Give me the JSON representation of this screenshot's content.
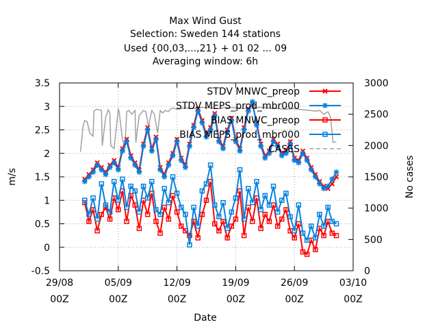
{
  "chart_data": {
    "type": "line",
    "title_lines": [
      "Max Wind Gust",
      "Selection: Sweden    144 stations",
      "Used {00,03,...,21} + 01 02 ... 09",
      "Averaging window:  6h"
    ],
    "xlabel": "Date",
    "ylabel": "m/s",
    "y2label": "No cases",
    "x_ticks": [
      {
        "x": 0,
        "line1": "29/08",
        "line2": "00Z"
      },
      {
        "x": 7,
        "line1": "05/09",
        "line2": "00Z"
      },
      {
        "x": 14,
        "line1": "12/09",
        "line2": "00Z"
      },
      {
        "x": 21,
        "line1": "19/09",
        "line2": "00Z"
      },
      {
        "x": 28,
        "line1": "26/09",
        "line2": "00Z"
      },
      {
        "x": 35,
        "line1": "03/10",
        "line2": "00Z"
      }
    ],
    "xlim": [
      0,
      35
    ],
    "ylim": [
      -0.5,
      3.5
    ],
    "y_ticks": [
      "-0.5",
      "0",
      "0.5",
      "1",
      "1.5",
      "2",
      "2.5",
      "3",
      "3.5"
    ],
    "y2lim": [
      0,
      3000
    ],
    "y2_ticks": [
      "0",
      "500",
      "1000",
      "1500",
      "2000",
      "2500",
      "3000"
    ],
    "grid": true,
    "legend_position": "top-right",
    "series": [
      {
        "name": "STDV MNWC_preop",
        "color": "#ff0000",
        "marker": "x",
        "axis": "y",
        "x": [
          3.0,
          3.5,
          4.0,
          4.5,
          5.0,
          5.5,
          6.0,
          6.5,
          7.0,
          7.5,
          8.0,
          8.5,
          9.0,
          9.5,
          10.0,
          10.5,
          11.0,
          11.5,
          12.0,
          12.5,
          13.0,
          13.5,
          14.0,
          14.5,
          15.0,
          15.5,
          16.0,
          16.5,
          17.0,
          17.5,
          18.0,
          18.5,
          19.0,
          19.5,
          20.0,
          20.5,
          21.0,
          21.5,
          22.0,
          22.5,
          23.0,
          23.5,
          24.0,
          24.5,
          25.0,
          25.5,
          26.0,
          26.5,
          27.0,
          27.5,
          28.0,
          28.5,
          29.0,
          29.5,
          30.0,
          30.5,
          31.0,
          31.5,
          32.0,
          32.5,
          33.0
        ],
        "values": [
          1.45,
          1.55,
          1.65,
          1.8,
          1.7,
          1.6,
          1.75,
          1.85,
          1.7,
          2.1,
          2.3,
          1.95,
          1.8,
          1.65,
          2.2,
          2.55,
          2.1,
          2.35,
          1.7,
          1.55,
          1.8,
          2.0,
          2.3,
          1.9,
          1.75,
          2.2,
          2.6,
          2.95,
          2.7,
          2.4,
          2.55,
          2.85,
          2.3,
          2.15,
          2.5,
          2.75,
          2.3,
          2.1,
          2.55,
          2.95,
          3.05,
          2.65,
          2.2,
          1.95,
          2.05,
          2.3,
          2.2,
          2.0,
          2.05,
          2.25,
          1.9,
          1.85,
          2.05,
          1.9,
          1.7,
          1.55,
          1.4,
          1.3,
          1.25,
          1.35,
          1.5
        ]
      },
      {
        "name": "STDV MEPS_prod_mbr000",
        "color": "#0080e0",
        "marker": "*",
        "axis": "y",
        "x": [
          3.0,
          3.5,
          4.0,
          4.5,
          5.0,
          5.5,
          6.0,
          6.5,
          7.0,
          7.5,
          8.0,
          8.5,
          9.0,
          9.5,
          10.0,
          10.5,
          11.0,
          11.5,
          12.0,
          12.5,
          13.0,
          13.5,
          14.0,
          14.5,
          15.0,
          15.5,
          16.0,
          16.5,
          17.0,
          17.5,
          18.0,
          18.5,
          19.0,
          19.5,
          20.0,
          20.5,
          21.0,
          21.5,
          22.0,
          22.5,
          23.0,
          23.5,
          24.0,
          24.5,
          25.0,
          25.5,
          26.0,
          26.5,
          27.0,
          27.5,
          28.0,
          28.5,
          29.0,
          29.5,
          30.0,
          30.5,
          31.0,
          31.5,
          32.0,
          32.5,
          33.0
        ],
        "values": [
          1.4,
          1.5,
          1.6,
          1.75,
          1.65,
          1.55,
          1.7,
          1.8,
          1.65,
          2.05,
          2.25,
          1.9,
          1.75,
          1.6,
          2.15,
          2.5,
          2.05,
          2.3,
          1.65,
          1.5,
          1.75,
          1.95,
          2.25,
          1.85,
          1.7,
          2.15,
          2.55,
          2.9,
          2.65,
          2.35,
          2.5,
          2.8,
          2.25,
          2.1,
          2.45,
          2.7,
          2.25,
          2.05,
          2.5,
          2.9,
          3.1,
          2.6,
          2.15,
          1.9,
          2.0,
          2.25,
          2.15,
          1.95,
          2.0,
          2.2,
          1.85,
          1.8,
          2.0,
          1.85,
          1.65,
          1.5,
          1.35,
          1.25,
          1.3,
          1.45,
          1.6
        ]
      },
      {
        "name": "BIAS MNWC_preop",
        "color": "#ff0000",
        "marker": "square",
        "axis": "y",
        "x": [
          3.0,
          3.5,
          4.0,
          4.5,
          5.0,
          5.5,
          6.0,
          6.5,
          7.0,
          7.5,
          8.0,
          8.5,
          9.0,
          9.5,
          10.0,
          10.5,
          11.0,
          11.5,
          12.0,
          12.5,
          13.0,
          13.5,
          14.0,
          14.5,
          15.0,
          15.5,
          16.0,
          16.5,
          17.0,
          17.5,
          18.0,
          18.5,
          19.0,
          19.5,
          20.0,
          20.5,
          21.0,
          21.5,
          22.0,
          22.5,
          23.0,
          23.5,
          24.0,
          24.5,
          25.0,
          25.5,
          26.0,
          26.5,
          27.0,
          27.5,
          28.0,
          28.5,
          29.0,
          29.5,
          30.0,
          30.5,
          31.0,
          31.5,
          32.0,
          32.5,
          33.0
        ],
        "values": [
          0.95,
          0.55,
          0.8,
          0.35,
          0.7,
          0.85,
          0.6,
          1.05,
          0.8,
          1.2,
          0.55,
          1.1,
          0.9,
          0.4,
          1.0,
          0.7,
          1.15,
          0.55,
          0.3,
          0.85,
          0.6,
          1.1,
          0.75,
          0.45,
          0.35,
          0.25,
          0.55,
          0.2,
          0.7,
          1.0,
          1.4,
          0.5,
          0.35,
          0.55,
          0.2,
          0.45,
          0.6,
          1.2,
          0.25,
          0.85,
          0.55,
          1.05,
          0.4,
          0.7,
          0.55,
          0.9,
          0.45,
          0.6,
          0.8,
          0.35,
          0.2,
          0.5,
          -0.1,
          -0.15,
          0.15,
          -0.05,
          0.4,
          0.25,
          0.55,
          0.3,
          0.25
        ]
      },
      {
        "name": "BIAS MEPS_prod_mbr000",
        "color": "#0080e0",
        "marker": "square",
        "axis": "y",
        "x": [
          3.0,
          3.5,
          4.0,
          4.5,
          5.0,
          5.5,
          6.0,
          6.5,
          7.0,
          7.5,
          8.0,
          8.5,
          9.0,
          9.5,
          10.0,
          10.5,
          11.0,
          11.5,
          12.0,
          12.5,
          13.0,
          13.5,
          14.0,
          14.5,
          15.0,
          15.5,
          16.0,
          16.5,
          17.0,
          17.5,
          18.0,
          18.5,
          19.0,
          19.5,
          20.0,
          20.5,
          21.0,
          21.5,
          22.0,
          22.5,
          23.0,
          23.5,
          24.0,
          24.5,
          25.0,
          25.5,
          26.0,
          26.5,
          27.0,
          27.5,
          28.0,
          28.5,
          29.0,
          29.5,
          30.0,
          30.5,
          31.0,
          31.5,
          32.0,
          32.5,
          33.0
        ],
        "values": [
          1.0,
          0.7,
          1.05,
          0.6,
          1.35,
          0.9,
          0.75,
          1.4,
          1.0,
          1.45,
          0.85,
          1.3,
          1.2,
          0.75,
          1.3,
          1.05,
          1.4,
          0.8,
          0.7,
          1.25,
          0.95,
          1.5,
          1.15,
          0.85,
          0.7,
          0.05,
          0.85,
          0.45,
          1.2,
          1.35,
          1.75,
          0.9,
          0.65,
          0.95,
          0.4,
          0.75,
          1.05,
          1.65,
          0.6,
          1.25,
          0.95,
          1.4,
          0.8,
          1.1,
          0.9,
          1.3,
          0.75,
          1.0,
          1.15,
          0.65,
          0.35,
          0.9,
          0.3,
          0.15,
          0.45,
          0.2,
          0.7,
          0.45,
          0.85,
          0.55,
          0.5
        ]
      },
      {
        "name": "CASES",
        "color": "#a0a0a0",
        "marker": "none",
        "axis": "y2",
        "x": [
          2.5,
          2.8,
          3.0,
          3.3,
          3.6,
          4.0,
          4.1,
          4.4,
          5.0,
          5.1,
          5.5,
          5.8,
          6.0,
          6.1,
          6.5,
          7.0,
          7.1,
          7.5,
          7.8,
          8.0,
          8.3,
          8.6,
          9.0,
          9.1,
          9.5,
          10.0,
          10.3,
          10.6,
          11.0,
          11.3,
          11.7,
          12.0,
          12.3,
          12.6,
          13.0,
          13.2,
          13.5,
          14.0,
          15.0,
          16.0,
          17.0,
          18.0,
          19.0,
          20.0,
          21.0,
          22.0,
          23.0,
          24.0,
          25.0,
          26.0,
          27.0,
          28.0,
          29.0,
          30.0,
          30.5,
          31.0,
          31.5,
          32.0,
          32.3,
          32.6,
          33.0
        ],
        "values": [
          1900,
          2300,
          2400,
          2380,
          2200,
          2150,
          2550,
          2580,
          2560,
          2000,
          2450,
          2570,
          2520,
          2000,
          1950,
          2580,
          2550,
          2100,
          1950,
          2540,
          2560,
          2500,
          2560,
          2050,
          2480,
          2560,
          2540,
          2300,
          2560,
          2500,
          2200,
          2560,
          2520,
          2560,
          2540,
          2580,
          2600,
          2580,
          2600,
          2590,
          2610,
          2600,
          2590,
          2610,
          2600,
          2590,
          2600,
          2610,
          2600,
          2590,
          2580,
          2590,
          2570,
          2560,
          2550,
          2560,
          2500,
          2540,
          2460,
          2050,
          2060
        ]
      }
    ]
  }
}
